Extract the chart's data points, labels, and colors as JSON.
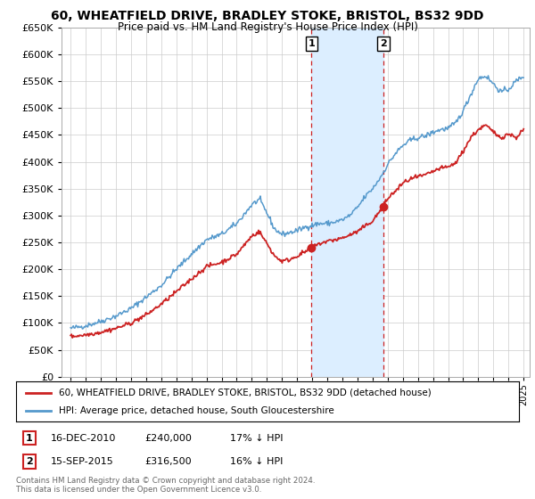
{
  "title": "60, WHEATFIELD DRIVE, BRADLEY STOKE, BRISTOL, BS32 9DD",
  "subtitle": "Price paid vs. HM Land Registry's House Price Index (HPI)",
  "legend_line1": "60, WHEATFIELD DRIVE, BRADLEY STOKE, BRISTOL, BS32 9DD (detached house)",
  "legend_line2": "HPI: Average price, detached house, South Gloucestershire",
  "footer1": "Contains HM Land Registry data © Crown copyright and database right 2024.",
  "footer2": "This data is licensed under the Open Government Licence v3.0.",
  "sale1_label": "1",
  "sale1_date": "16-DEC-2010",
  "sale1_price": "£240,000",
  "sale1_hpi": "17% ↓ HPI",
  "sale1_year": 2010.96,
  "sale1_value": 240000,
  "sale2_label": "2",
  "sale2_date": "15-SEP-2015",
  "sale2_price": "£316,500",
  "sale2_hpi": "16% ↓ HPI",
  "sale2_year": 2015.71,
  "sale2_value": 316500,
  "red_color": "#cc2222",
  "blue_color": "#5599cc",
  "shade_color": "#dceeff",
  "ylim": [
    0,
    650000
  ],
  "yticks": [
    0,
    50000,
    100000,
    150000,
    200000,
    250000,
    300000,
    350000,
    400000,
    450000,
    500000,
    550000,
    600000,
    650000
  ],
  "background_color": "#ffffff",
  "grid_color": "#cccccc",
  "hpi_breakpoints_x": [
    1995.0,
    1996.0,
    1997.0,
    1998.0,
    1999.0,
    2000.0,
    2001.0,
    2002.0,
    2003.0,
    2004.0,
    2005.0,
    2006.0,
    2007.0,
    2007.5,
    2008.0,
    2008.5,
    2009.0,
    2009.5,
    2010.0,
    2010.5,
    2011.0,
    2011.5,
    2012.0,
    2012.5,
    2013.0,
    2013.5,
    2014.0,
    2014.5,
    2015.0,
    2015.5,
    2016.0,
    2016.5,
    2017.0,
    2017.5,
    2018.0,
    2018.5,
    2019.0,
    2019.5,
    2020.0,
    2020.5,
    2021.0,
    2021.5,
    2022.0,
    2022.5,
    2023.0,
    2023.5,
    2024.0,
    2024.5,
    2025.0
  ],
  "hpi_breakpoints_y": [
    90000,
    95000,
    103000,
    113000,
    127000,
    148000,
    170000,
    200000,
    228000,
    255000,
    265000,
    285000,
    320000,
    330000,
    305000,
    275000,
    265000,
    268000,
    272000,
    278000,
    282000,
    285000,
    285000,
    288000,
    292000,
    300000,
    315000,
    335000,
    350000,
    370000,
    395000,
    415000,
    430000,
    440000,
    445000,
    448000,
    455000,
    460000,
    462000,
    472000,
    495000,
    525000,
    555000,
    560000,
    545000,
    530000,
    535000,
    550000,
    560000
  ],
  "red_breakpoints_x": [
    1995.0,
    1996.0,
    1997.0,
    1998.0,
    1999.0,
    2000.0,
    2001.0,
    2002.0,
    2003.0,
    2004.0,
    2005.0,
    2006.0,
    2007.0,
    2007.5,
    2008.0,
    2008.5,
    2009.0,
    2009.5,
    2010.0,
    2010.5,
    2010.96,
    2011.5,
    2012.0,
    2013.0,
    2014.0,
    2015.0,
    2015.71,
    2016.0,
    2016.5,
    2017.0,
    2017.5,
    2018.0,
    2018.5,
    2019.0,
    2019.5,
    2020.0,
    2020.5,
    2021.0,
    2021.5,
    2022.0,
    2022.5,
    2023.0,
    2023.5,
    2024.0,
    2024.5,
    2025.0
  ],
  "red_breakpoints_y": [
    75000,
    78000,
    83000,
    90000,
    100000,
    115000,
    135000,
    158000,
    182000,
    205000,
    213000,
    228000,
    262000,
    270000,
    248000,
    225000,
    215000,
    218000,
    225000,
    232000,
    240000,
    248000,
    252000,
    258000,
    270000,
    290000,
    316500,
    332000,
    345000,
    360000,
    368000,
    372000,
    375000,
    382000,
    388000,
    390000,
    398000,
    420000,
    445000,
    460000,
    468000,
    455000,
    445000,
    452000,
    445000,
    460000
  ]
}
